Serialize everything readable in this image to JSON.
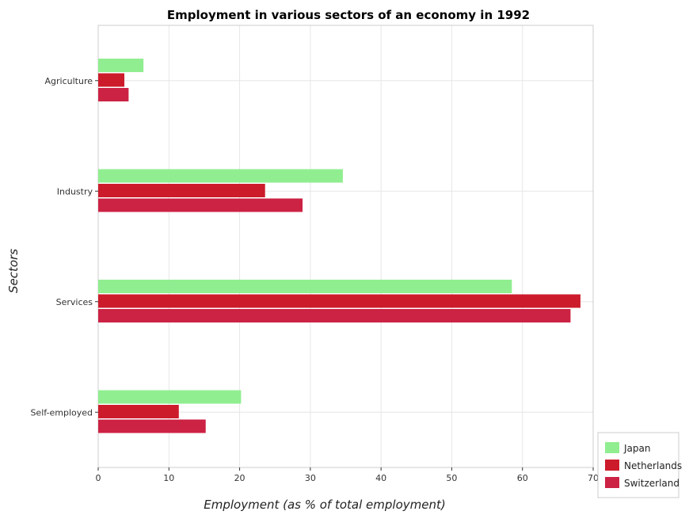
{
  "chart_data": {
    "type": "bar",
    "orientation": "horizontal",
    "title": "Employment in various sectors of an economy in 1992",
    "xlabel": "Employment (as % of total employment)",
    "ylabel": "Sectors",
    "categories": [
      "Agriculture",
      "Industry",
      "Services",
      "Self-employed"
    ],
    "xlim": [
      0,
      70
    ],
    "xticks": [
      0,
      10,
      20,
      30,
      40,
      50,
      60,
      70
    ],
    "grid": true,
    "legend_position": "bottom-right",
    "series": [
      {
        "name": "Japan",
        "color": "#90ee90",
        "values": [
          6.4,
          34.6,
          58.5,
          20.2
        ]
      },
      {
        "name": "Netherlands",
        "color": "#cc1c2c",
        "values": [
          3.7,
          23.6,
          68.2,
          11.4
        ]
      },
      {
        "name": "Switzerland",
        "color": "#cc2244",
        "values": [
          4.3,
          28.9,
          66.8,
          15.2
        ]
      }
    ]
  }
}
